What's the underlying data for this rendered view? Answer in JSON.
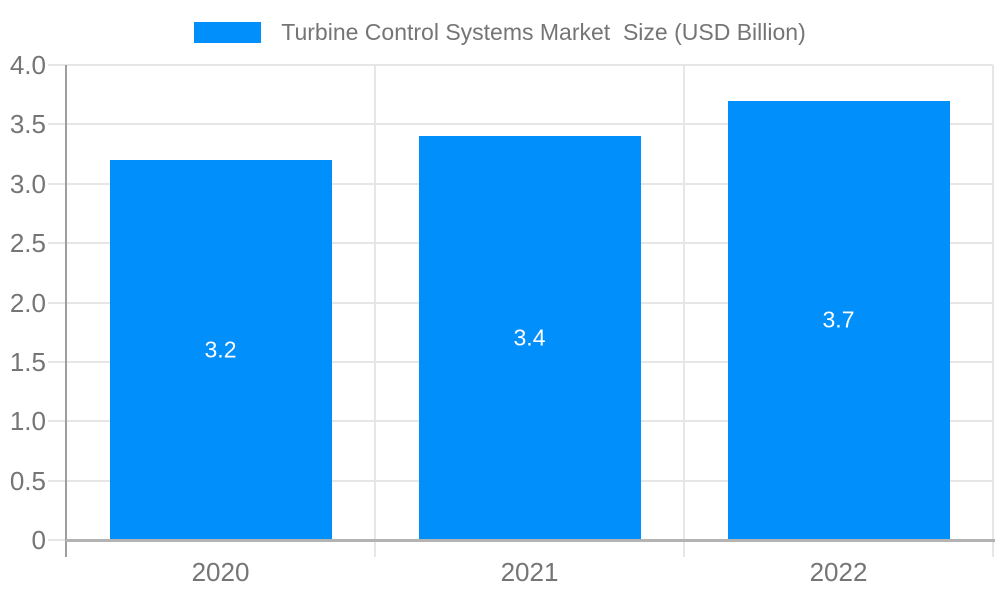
{
  "chart_data": {
    "type": "bar",
    "title": "Turbine Control Systems Market  Size (USD Billion)",
    "categories": [
      "2020",
      "2021",
      "2022"
    ],
    "values": [
      3.2,
      3.4,
      3.7
    ],
    "value_labels": [
      "3.2",
      "3.4",
      "3.7"
    ],
    "ylim": [
      0,
      4
    ],
    "yticks": [
      {
        "v": 0,
        "label": "0"
      },
      {
        "v": 0.5,
        "label": "0.5"
      },
      {
        "v": 1,
        "label": "1.0"
      },
      {
        "v": 1.5,
        "label": "1.5"
      },
      {
        "v": 2,
        "label": "2.0"
      },
      {
        "v": 2.5,
        "label": "2.5"
      },
      {
        "v": 3,
        "label": "3.0"
      },
      {
        "v": 3.5,
        "label": "3.5"
      },
      {
        "v": 4,
        "label": "4.0"
      }
    ],
    "grid": true,
    "legend_position": "top",
    "colors": {
      "bar": "#008FFB",
      "value_label": "#ffffff",
      "axis_text": "#757575",
      "grid_line": "#e6e6e6",
      "axis_line": "#9e9e9e",
      "baseline": "#b3b3b3",
      "background": "#ffffff"
    }
  }
}
